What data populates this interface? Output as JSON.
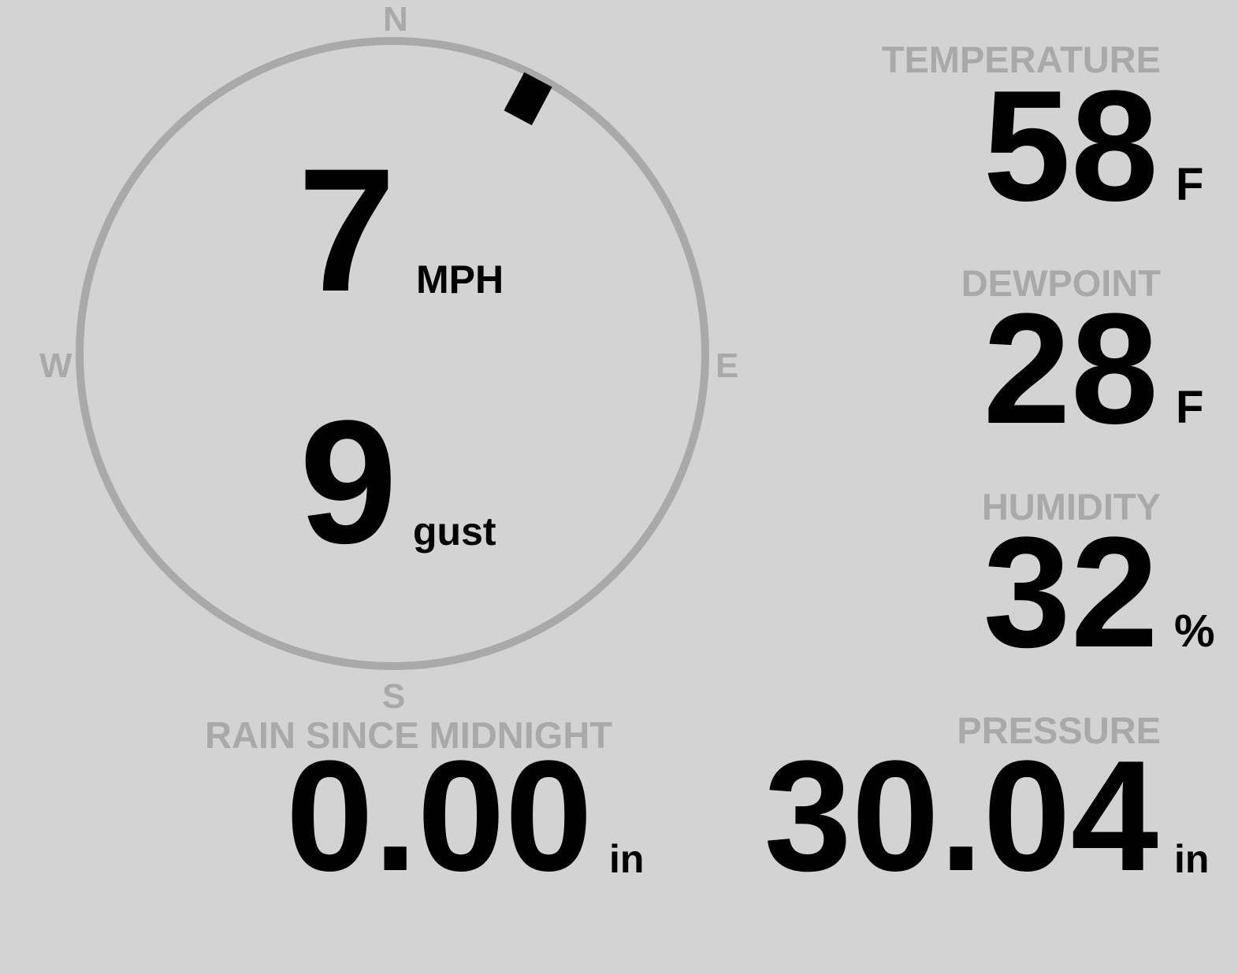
{
  "colors": {
    "background": "#d3d3d3",
    "label": "#a9a9a9",
    "value": "#000000",
    "compass_ring": "#a9a9a9",
    "wind_marker": "#000000"
  },
  "compass": {
    "north": "N",
    "east": "E",
    "south": "S",
    "west": "W",
    "wind_direction_degrees": 28
  },
  "wind": {
    "speed": "7",
    "speed_unit": "MPH",
    "gust": "9",
    "gust_label": "gust"
  },
  "temperature": {
    "label": "TEMPERATURE",
    "value": "58",
    "unit": "F"
  },
  "dewpoint": {
    "label": "DEWPOINT",
    "value": "28",
    "unit": "F"
  },
  "humidity": {
    "label": "HUMIDITY",
    "value": "32",
    "unit": "%"
  },
  "pressure": {
    "label": "PRESSURE",
    "value": "30.04",
    "unit": "in"
  },
  "rain": {
    "label": "RAIN SINCE MIDNIGHT",
    "value": "0.00",
    "unit": "in"
  }
}
